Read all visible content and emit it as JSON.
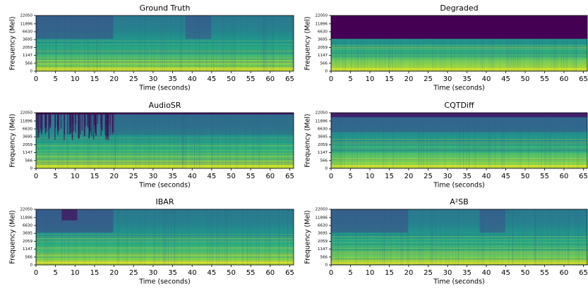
{
  "chart_data": [
    {
      "type": "heatmap",
      "title": "Ground Truth",
      "xlabel": "Time (seconds)",
      "ylabel": "Frequency (Mel)",
      "yscale": "mel",
      "colormap": "viridis",
      "xlim": [
        0,
        66
      ],
      "xticks": [
        0,
        5,
        10,
        15,
        20,
        25,
        30,
        35,
        40,
        45,
        50,
        55,
        60,
        65
      ],
      "ylim": [
        0,
        22050
      ],
      "yticks": [
        0,
        566,
        1147,
        2059,
        3695,
        6630,
        11896,
        22050
      ]
    },
    {
      "type": "heatmap",
      "title": "Degraded",
      "xlabel": "Time (seconds)",
      "ylabel": "Frequency (Mel)",
      "yscale": "mel",
      "colormap": "viridis",
      "xlim": [
        0,
        66
      ],
      "xticks": [
        0,
        5,
        10,
        15,
        20,
        25,
        30,
        35,
        40,
        45,
        50,
        55,
        60,
        65
      ],
      "ylim": [
        0,
        22050
      ],
      "yticks": [
        0,
        566,
        1147,
        2059,
        3695,
        6630,
        11896,
        22050
      ]
    },
    {
      "type": "heatmap",
      "title": "AudioSR",
      "xlabel": "Time (seconds)",
      "ylabel": "Frequency (Mel)",
      "yscale": "mel",
      "colormap": "viridis",
      "xlim": [
        0,
        66
      ],
      "xticks": [
        0,
        5,
        10,
        15,
        20,
        25,
        30,
        35,
        40,
        45,
        50,
        55,
        60,
        65
      ],
      "ylim": [
        0,
        22050
      ],
      "yticks": [
        0,
        566,
        1147,
        2059,
        3695,
        6630,
        11896,
        22050
      ]
    },
    {
      "type": "heatmap",
      "title": "CQTDiff",
      "xlabel": "Time (seconds)",
      "ylabel": "Frequency (Mel)",
      "yscale": "mel",
      "colormap": "viridis",
      "xlim": [
        0,
        66
      ],
      "xticks": [
        0,
        5,
        10,
        15,
        20,
        25,
        30,
        35,
        40,
        45,
        50,
        55,
        60,
        65
      ],
      "ylim": [
        0,
        22050
      ],
      "yticks": [
        0,
        566,
        1147,
        2059,
        3695,
        6630,
        11896,
        22050
      ]
    },
    {
      "type": "heatmap",
      "title": "IBAR",
      "xlabel": "Time (seconds)",
      "ylabel": "Frequency (Mel)",
      "yscale": "mel",
      "colormap": "viridis",
      "xlim": [
        0,
        66
      ],
      "xticks": [
        0,
        5,
        10,
        15,
        20,
        25,
        30,
        35,
        40,
        45,
        50,
        55,
        60,
        65
      ],
      "ylim": [
        0,
        22050
      ],
      "yticks": [
        0,
        566,
        1147,
        2059,
        3695,
        6630,
        11896,
        22050
      ]
    },
    {
      "type": "heatmap",
      "title": "A²SB",
      "xlabel": "Time (seconds)",
      "ylabel": "Frequency (Mel)",
      "yscale": "mel",
      "colormap": "viridis",
      "xlim": [
        0,
        66
      ],
      "xticks": [
        0,
        5,
        10,
        15,
        20,
        25,
        30,
        35,
        40,
        45,
        50,
        55,
        60,
        65
      ],
      "ylim": [
        0,
        22050
      ],
      "yticks": [
        0,
        566,
        1147,
        2059,
        3695,
        6630,
        11896,
        22050
      ]
    }
  ]
}
